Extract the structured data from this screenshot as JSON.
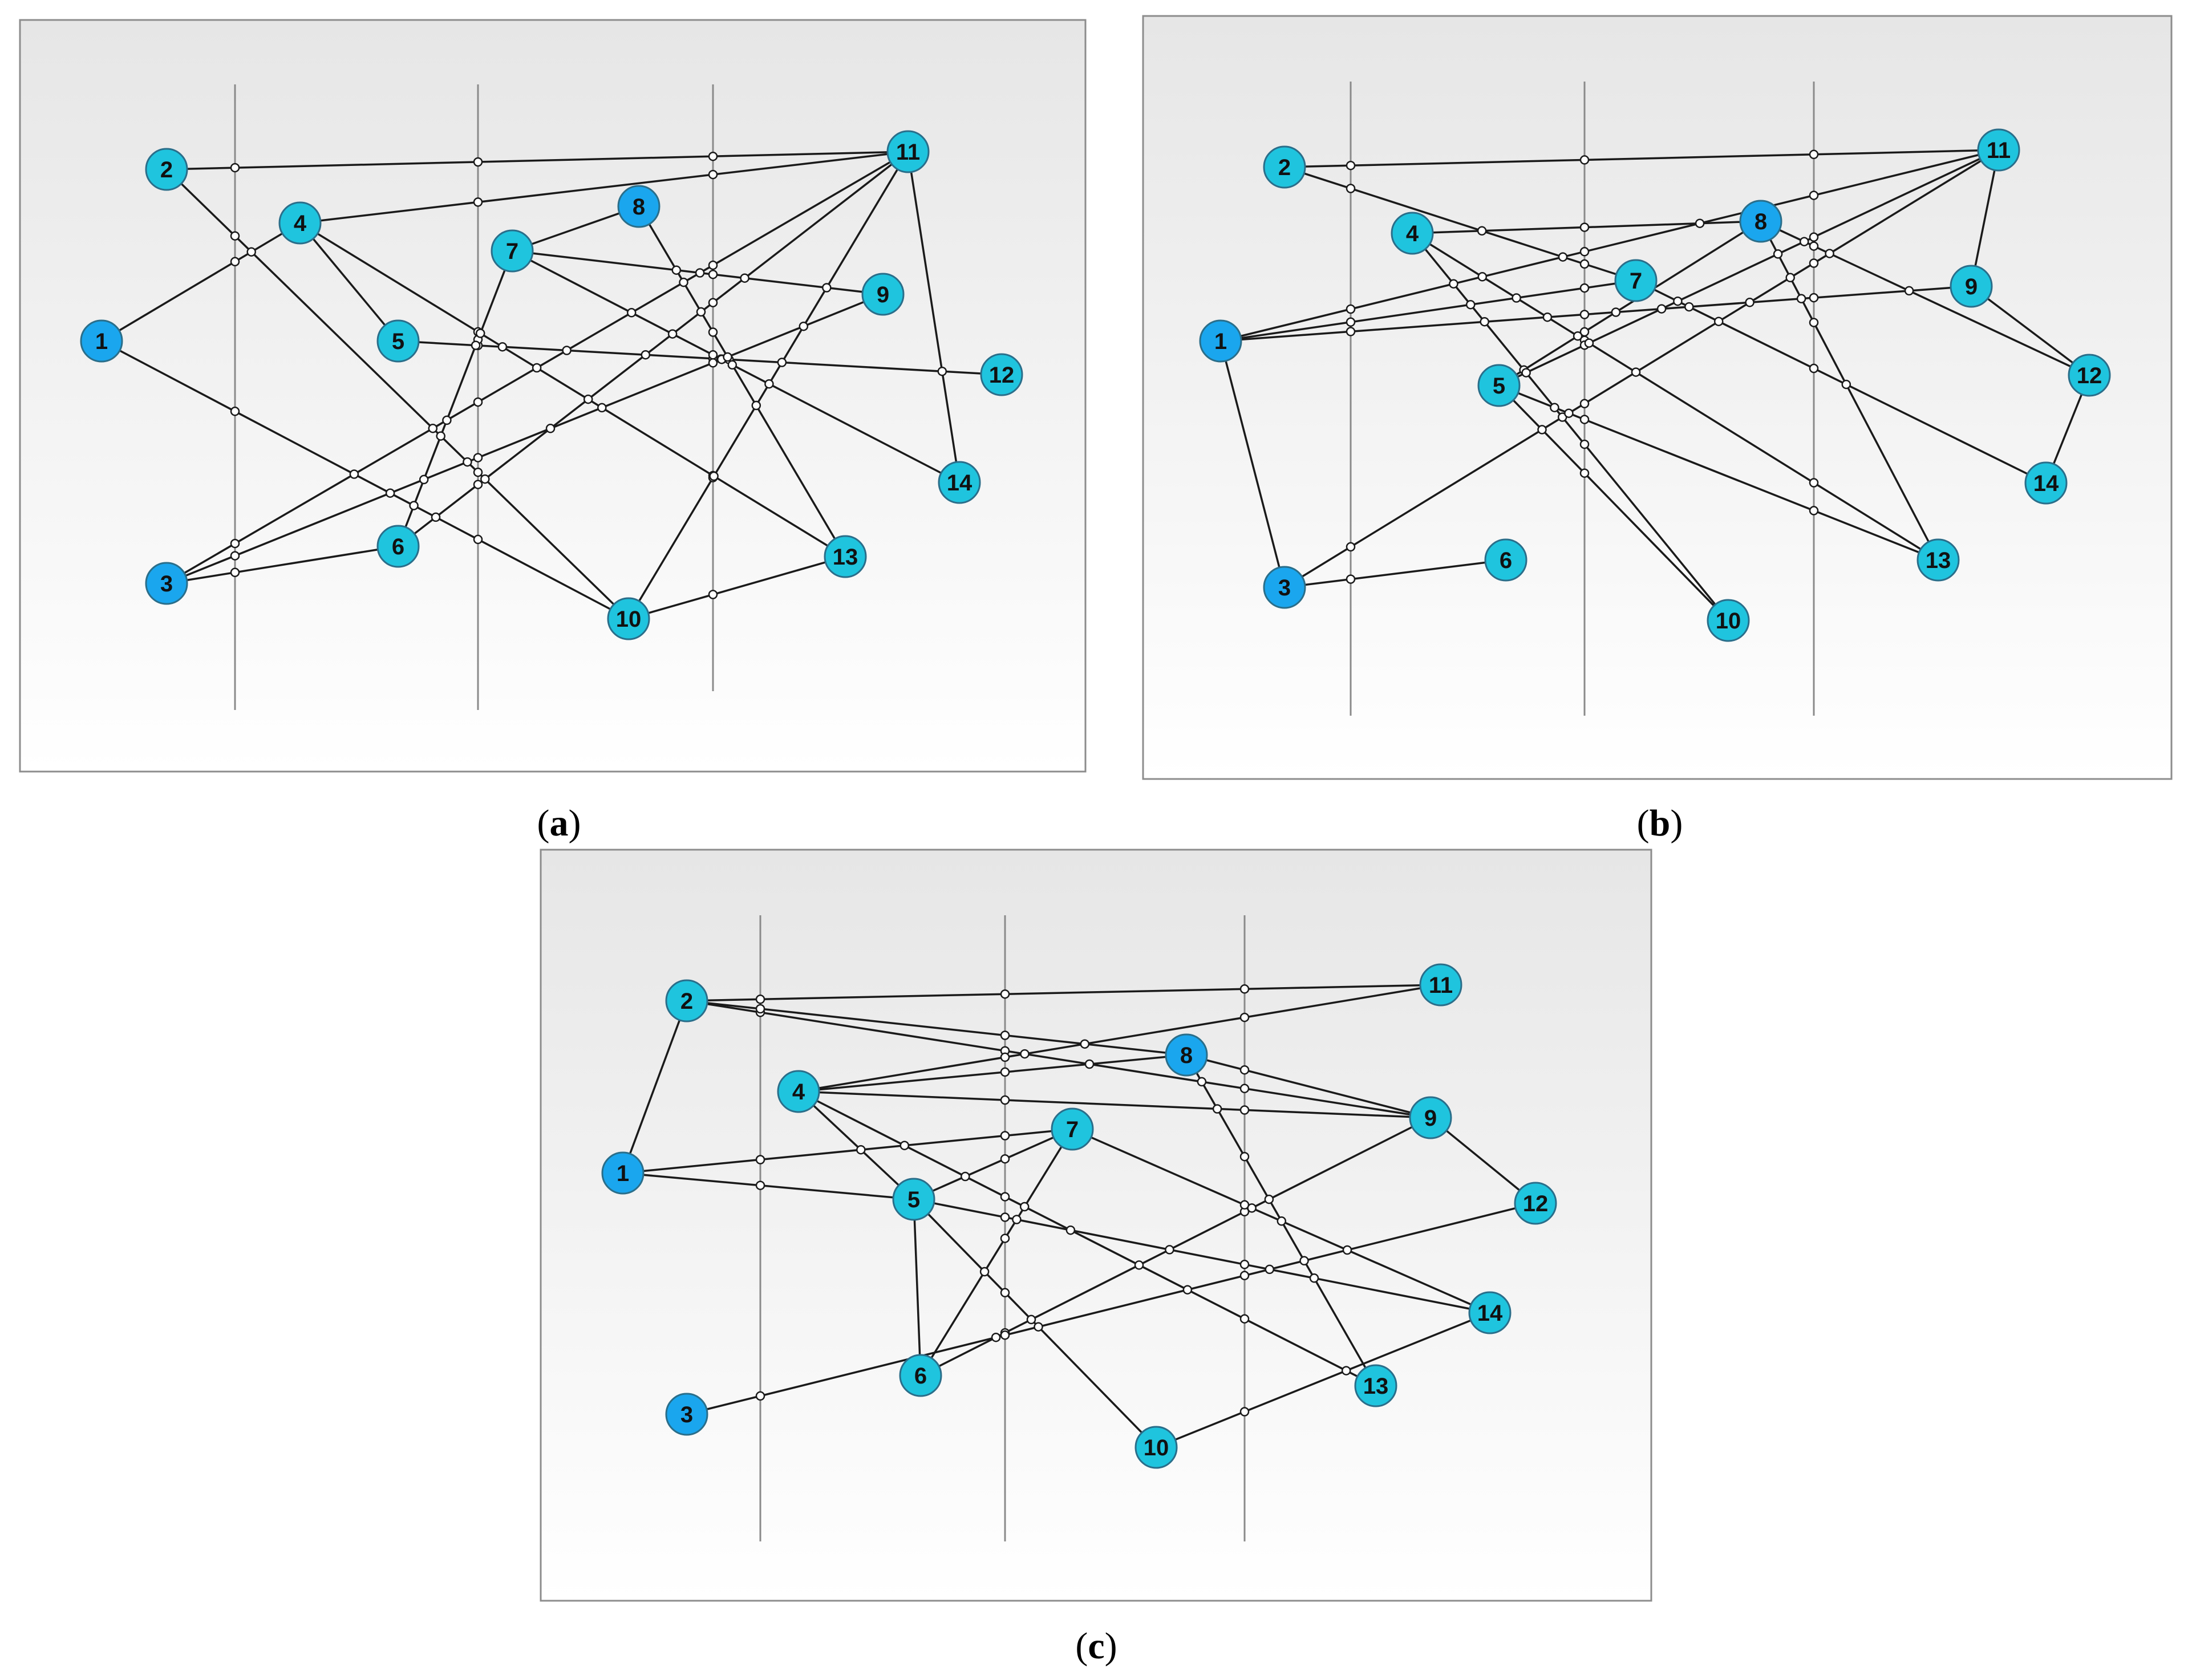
{
  "colors": {
    "node_fill": "#1fc4de",
    "node_fill_highlight": "#1aa6ee",
    "node_stroke": "#2a6e8a",
    "edge": "#1a1a1a",
    "guide": "#8a8a8a",
    "panel_top": "#e6e6e6",
    "panel_bottom": "#ffffff"
  },
  "panels": [
    {
      "id": "a",
      "caption_letter": "a",
      "highlight_nodes": [
        "1",
        "3",
        "8"
      ],
      "nodes": [
        {
          "id": "1",
          "label": "1"
        },
        {
          "id": "2",
          "label": "2"
        },
        {
          "id": "3",
          "label": "3"
        },
        {
          "id": "4",
          "label": "4"
        },
        {
          "id": "5",
          "label": "5"
        },
        {
          "id": "6",
          "label": "6"
        },
        {
          "id": "7",
          "label": "7"
        },
        {
          "id": "8",
          "label": "8"
        },
        {
          "id": "9",
          "label": "9"
        },
        {
          "id": "10",
          "label": "10"
        },
        {
          "id": "11",
          "label": "11"
        },
        {
          "id": "12",
          "label": "12"
        },
        {
          "id": "13",
          "label": "13"
        },
        {
          "id": "14",
          "label": "14"
        }
      ],
      "edges": [
        [
          "2",
          "11"
        ],
        [
          "4",
          "11"
        ],
        [
          "2",
          "10"
        ],
        [
          "1",
          "4"
        ],
        [
          "4",
          "5"
        ],
        [
          "4",
          "13"
        ],
        [
          "1",
          "10"
        ],
        [
          "5",
          "12"
        ],
        [
          "7",
          "8"
        ],
        [
          "7",
          "9"
        ],
        [
          "7",
          "14"
        ],
        [
          "6",
          "7"
        ],
        [
          "3",
          "6"
        ],
        [
          "3",
          "11"
        ],
        [
          "3",
          "9"
        ],
        [
          "6",
          "11"
        ],
        [
          "10",
          "11"
        ],
        [
          "10",
          "13"
        ],
        [
          "11",
          "14"
        ],
        [
          "8",
          "13"
        ]
      ]
    },
    {
      "id": "b",
      "caption_letter": "b",
      "highlight_nodes": [
        "1",
        "3",
        "8"
      ],
      "nodes": [
        {
          "id": "1",
          "label": "1"
        },
        {
          "id": "2",
          "label": "2"
        },
        {
          "id": "3",
          "label": "3"
        },
        {
          "id": "4",
          "label": "4"
        },
        {
          "id": "5",
          "label": "5"
        },
        {
          "id": "6",
          "label": "6"
        },
        {
          "id": "7",
          "label": "7"
        },
        {
          "id": "8",
          "label": "8"
        },
        {
          "id": "9",
          "label": "9"
        },
        {
          "id": "10",
          "label": "10"
        },
        {
          "id": "11",
          "label": "11"
        },
        {
          "id": "12",
          "label": "12"
        },
        {
          "id": "13",
          "label": "13"
        },
        {
          "id": "14",
          "label": "14"
        }
      ],
      "edges": [
        [
          "2",
          "11"
        ],
        [
          "2",
          "7"
        ],
        [
          "1",
          "11"
        ],
        [
          "1",
          "9"
        ],
        [
          "1",
          "7"
        ],
        [
          "1",
          "3"
        ],
        [
          "4",
          "8"
        ],
        [
          "4",
          "10"
        ],
        [
          "4",
          "13"
        ],
        [
          "5",
          "8"
        ],
        [
          "5",
          "11"
        ],
        [
          "5",
          "13"
        ],
        [
          "5",
          "10"
        ],
        [
          "3",
          "6"
        ],
        [
          "3",
          "11"
        ],
        [
          "8",
          "12"
        ],
        [
          "8",
          "13"
        ],
        [
          "7",
          "14"
        ],
        [
          "9",
          "11"
        ],
        [
          "9",
          "12"
        ],
        [
          "12",
          "14"
        ]
      ]
    },
    {
      "id": "c",
      "caption_letter": "c",
      "highlight_nodes": [
        "1",
        "3",
        "8"
      ],
      "nodes": [
        {
          "id": "1",
          "label": "1"
        },
        {
          "id": "2",
          "label": "2"
        },
        {
          "id": "3",
          "label": "3"
        },
        {
          "id": "4",
          "label": "4"
        },
        {
          "id": "5",
          "label": "5"
        },
        {
          "id": "6",
          "label": "6"
        },
        {
          "id": "7",
          "label": "7"
        },
        {
          "id": "8",
          "label": "8"
        },
        {
          "id": "9",
          "label": "9"
        },
        {
          "id": "10",
          "label": "10"
        },
        {
          "id": "11",
          "label": "11"
        },
        {
          "id": "12",
          "label": "12"
        },
        {
          "id": "13",
          "label": "13"
        },
        {
          "id": "14",
          "label": "14"
        }
      ],
      "edges": [
        [
          "2",
          "11"
        ],
        [
          "2",
          "9"
        ],
        [
          "2",
          "8"
        ],
        [
          "1",
          "2"
        ],
        [
          "4",
          "11"
        ],
        [
          "4",
          "9"
        ],
        [
          "4",
          "8"
        ],
        [
          "4",
          "5"
        ],
        [
          "4",
          "13"
        ],
        [
          "1",
          "7"
        ],
        [
          "1",
          "5"
        ],
        [
          "5",
          "7"
        ],
        [
          "5",
          "6"
        ],
        [
          "5",
          "10"
        ],
        [
          "5",
          "14"
        ],
        [
          "6",
          "7"
        ],
        [
          "6",
          "9"
        ],
        [
          "7",
          "14"
        ],
        [
          "8",
          "9"
        ],
        [
          "8",
          "13"
        ],
        [
          "3",
          "12"
        ],
        [
          "9",
          "12"
        ],
        [
          "10",
          "14"
        ]
      ]
    }
  ]
}
